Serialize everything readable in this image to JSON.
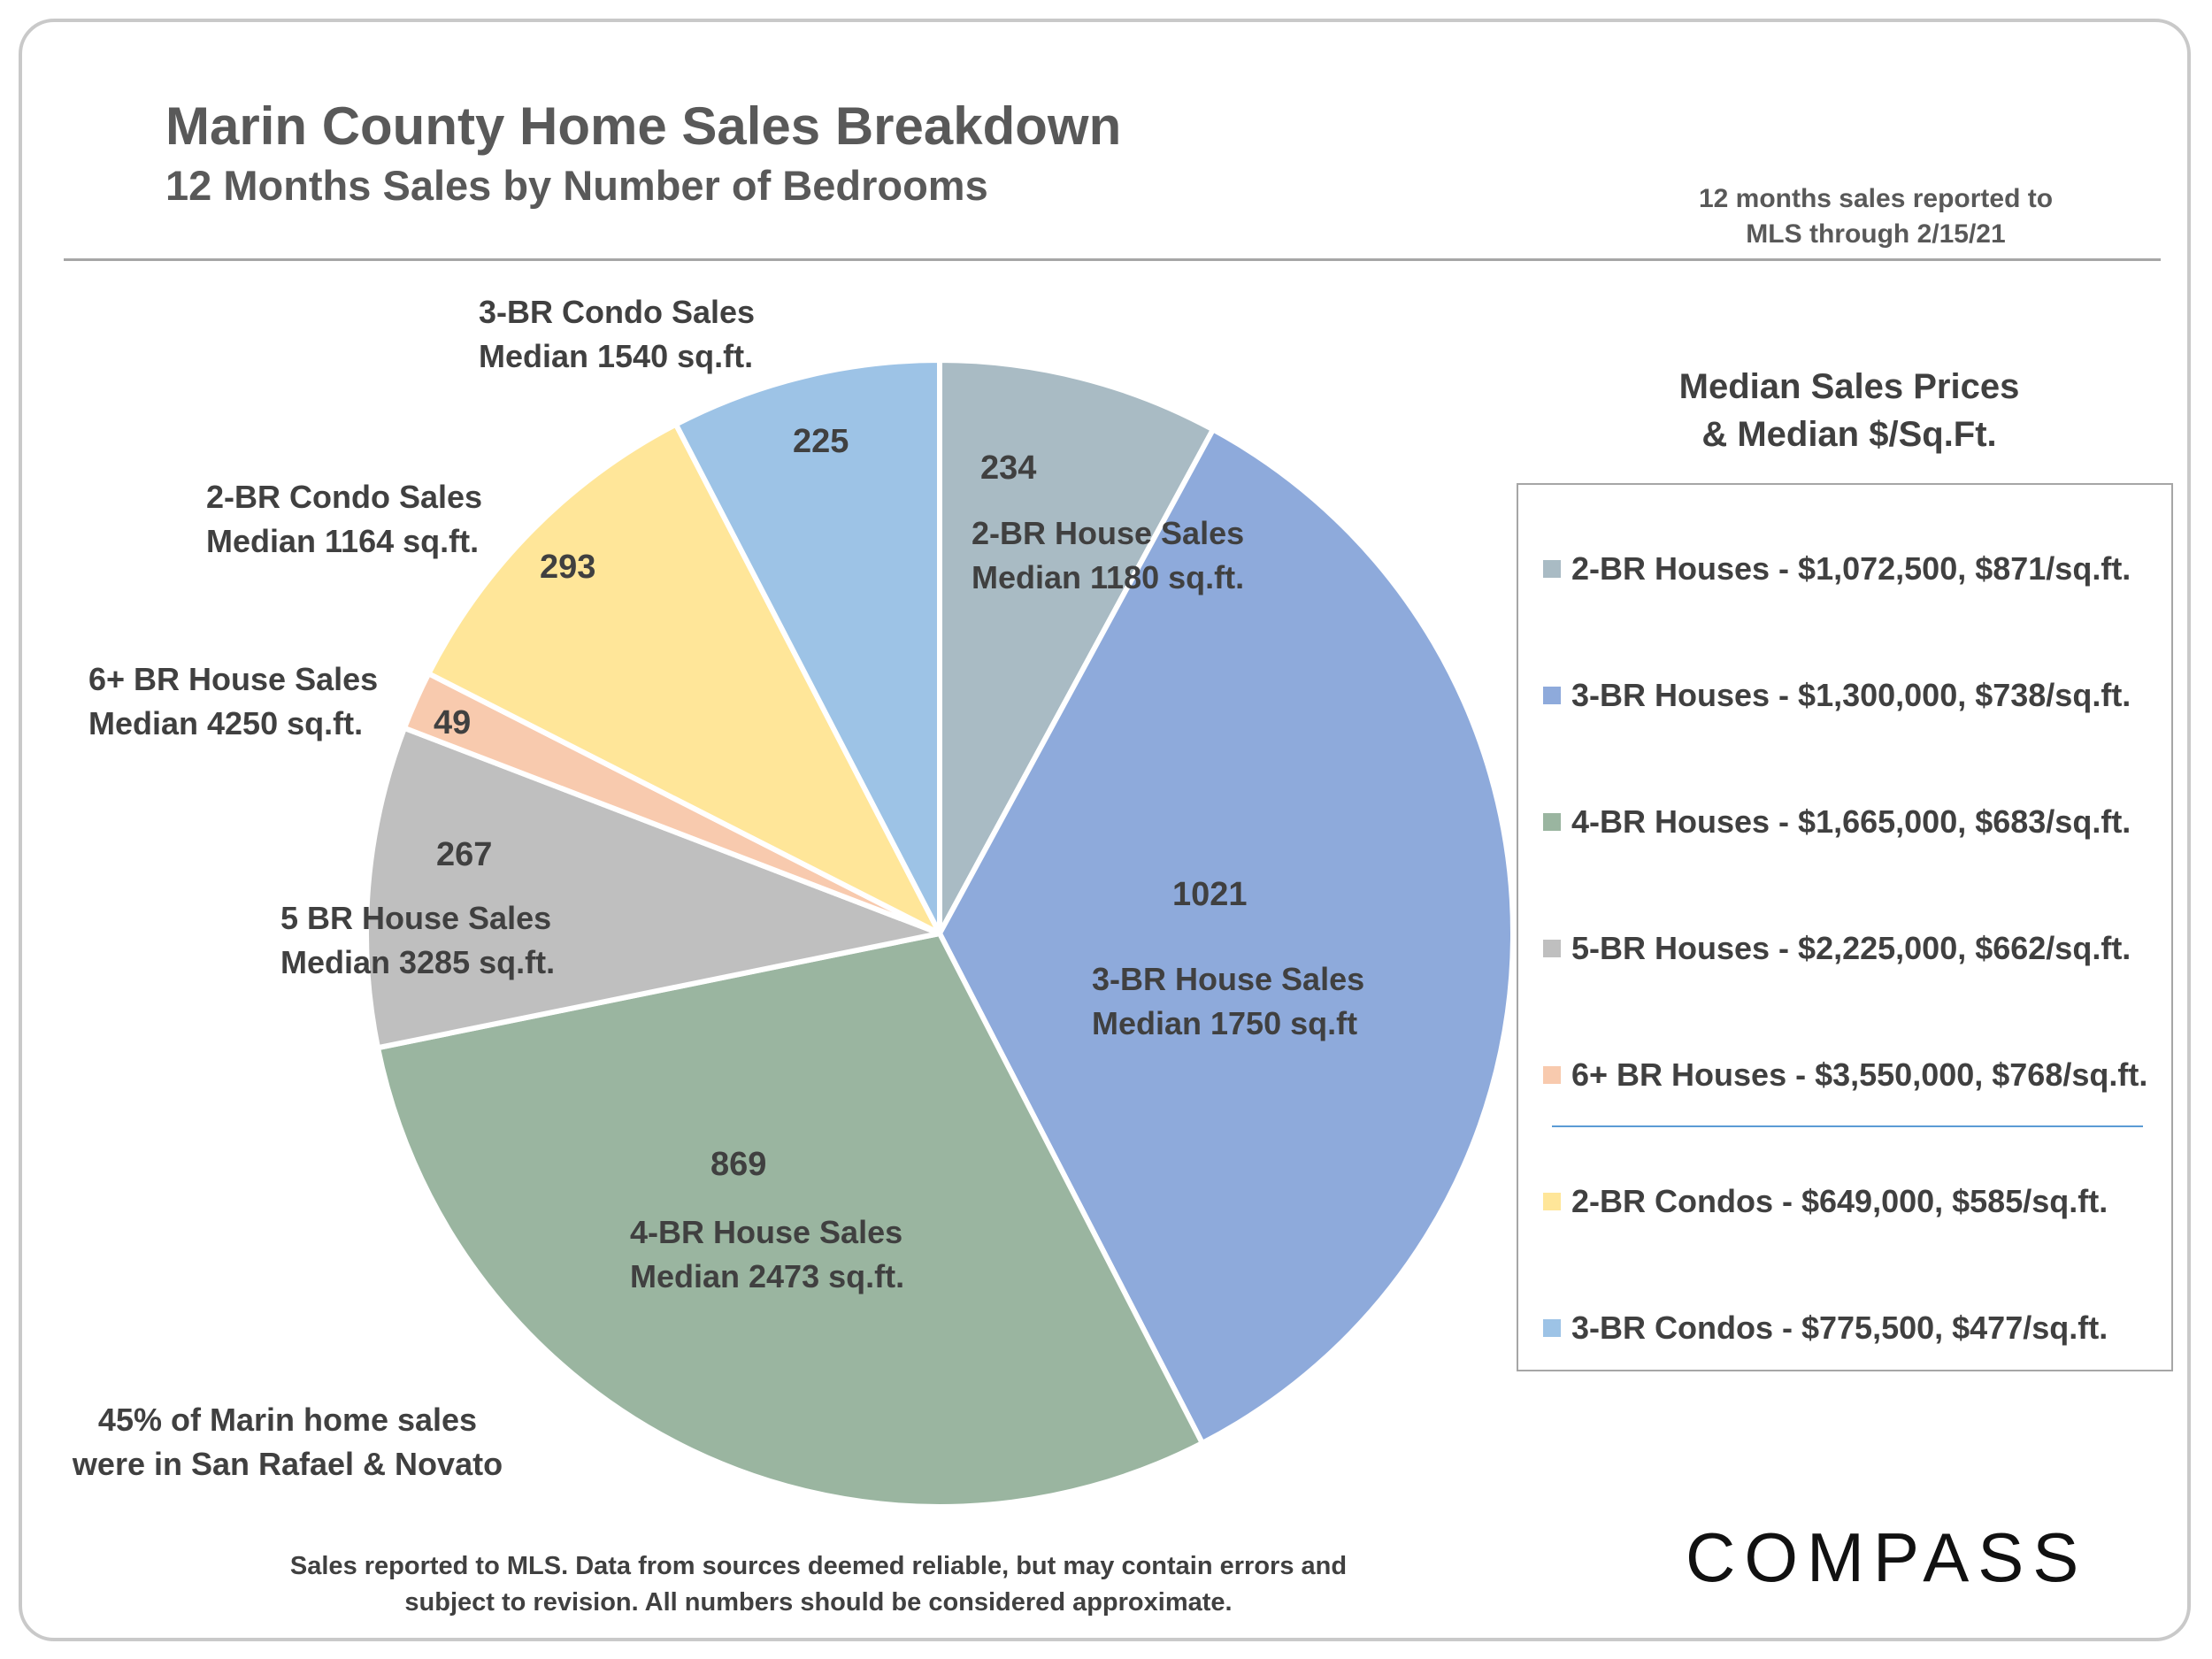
{
  "header": {
    "title": "Marin County Home Sales Breakdown",
    "subtitle": "12 Months Sales by Number of Bedrooms",
    "note_line1": "12 months sales reported to",
    "note_line2": "MLS through 2/15/21"
  },
  "chart_data": {
    "type": "pie",
    "title": "Marin County Home Sales Breakdown",
    "subtitle": "12 Months Sales by Number of Bedrooms",
    "start_angle": "12 o'clock",
    "direction": "clockwise",
    "slices": [
      {
        "key": "br2_house",
        "value": 234,
        "value_label": "234",
        "label_line1": "2-BR House Sales",
        "label_line2": "Median 1180 sq.ft.",
        "color": "#a9bbc4"
      },
      {
        "key": "br3_house",
        "value": 1021,
        "value_label": "1021",
        "label_line1": "3-BR House Sales",
        "label_line2": "Median 1750 sq.ft",
        "color": "#8eaadb"
      },
      {
        "key": "br4_house",
        "value": 869,
        "value_label": "869",
        "label_line1": "4-BR House Sales",
        "label_line2": "Median 2473 sq.ft.",
        "color": "#9ab5a0"
      },
      {
        "key": "br5_house",
        "value": 267,
        "value_label": "267",
        "label_line1": "5 BR House Sales",
        "label_line2": "Median 3285 sq.ft.",
        "color": "#bfbfbf"
      },
      {
        "key": "br6_house",
        "value": 49,
        "value_label": "49",
        "label_line1": "6+ BR House Sales",
        "label_line2": "Median 4250 sq.ft.",
        "color": "#f8caae"
      },
      {
        "key": "br2_condo",
        "value": 293,
        "value_label": "293",
        "label_line1": "2-BR Condo Sales",
        "label_line2": "Median 1164 sq.ft.",
        "color": "#ffe699"
      },
      {
        "key": "br3_condo",
        "value": 225,
        "value_label": "225",
        "label_line1": "3-BR Condo Sales",
        "label_line2": "Median 1540 sq.ft.",
        "color": "#9dc3e6"
      }
    ]
  },
  "legend": {
    "title_line1": "Median Sales Prices",
    "title_line2": "& Median $/Sq.Ft.",
    "items": [
      {
        "text": "2-BR Houses - $1,072,500, $871/sq.ft.",
        "color": "#a9bbc4"
      },
      {
        "text": "3-BR Houses - $1,300,000, $738/sq.ft.",
        "color": "#8eaadb"
      },
      {
        "text": "4-BR Houses - $1,665,000, $683/sq.ft.",
        "color": "#9ab5a0"
      },
      {
        "text": "5-BR Houses - $2,225,000, $662/sq.ft.",
        "color": "#bfbfbf"
      },
      {
        "text": "6+ BR Houses - $3,550,000, $768/sq.ft.",
        "color": "#f8caae"
      },
      {
        "text": "2-BR Condos - $649,000, $585/sq.ft.",
        "color": "#ffe699"
      },
      {
        "text": "3-BR Condos - $775,500, $477/sq.ft.",
        "color": "#9dc3e6"
      }
    ]
  },
  "notes": {
    "area_line1": "45% of Marin home sales",
    "area_line2": "were in San Rafael & Novato",
    "disclaimer_line1": "Sales reported to MLS. Data from sources deemed reliable, but may contain errors and",
    "disclaimer_line2": "subject to revision. All numbers should be considered approximate."
  },
  "brand": {
    "logo": "COMPASS"
  }
}
